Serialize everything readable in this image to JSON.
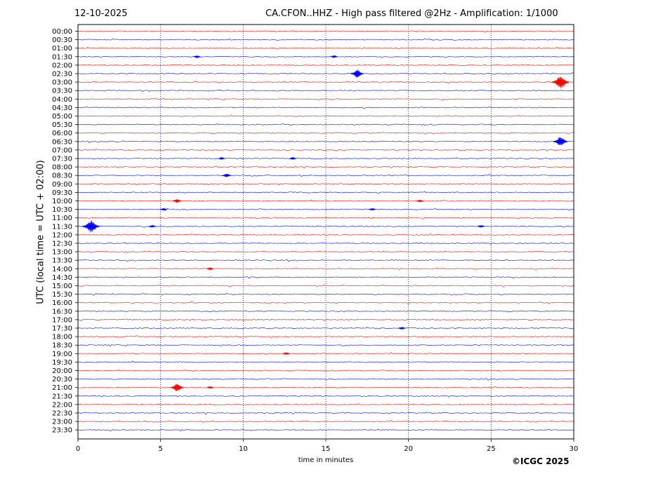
{
  "header": {
    "date": "12-10-2025",
    "title": "CA.CFON..HHZ - High pass filtered @2Hz - Amplification: 1/1000"
  },
  "footer": {
    "copyright": "©ICGC 2025"
  },
  "colors": {
    "trace_red": "#ff0000",
    "trace_blue": "#0000ff",
    "grid": "#000080",
    "frame": "#000000"
  },
  "chart_data": {
    "type": "line",
    "subtype": "helicorder",
    "title": "CA.CFON..HHZ - High pass filtered @2Hz - Amplification: 1/1000",
    "xlabel": "time in minutes",
    "ylabel": "UTC (local time = UTC + 02:00)",
    "xlim": [
      0,
      30
    ],
    "xticks": [
      0,
      5,
      10,
      15,
      20,
      25,
      30
    ],
    "grid": "vertical dotted lines at 5-minute ticks",
    "trace_colors": "alternating red and blue per row, starting with red at 00:00",
    "rows": [
      "00:00",
      "00:30",
      "01:00",
      "01:30",
      "02:00",
      "02:30",
      "03:00",
      "03:30",
      "04:00",
      "04:30",
      "05:00",
      "05:30",
      "06:00",
      "06:30",
      "07:00",
      "07:30",
      "08:00",
      "08:30",
      "09:00",
      "09:30",
      "10:00",
      "10:30",
      "11:00",
      "11:30",
      "12:00",
      "12:30",
      "13:00",
      "13:30",
      "14:00",
      "14:30",
      "15:00",
      "15:30",
      "16:00",
      "16:30",
      "17:00",
      "17:30",
      "18:00",
      "18:30",
      "19:00",
      "19:30",
      "20:00",
      "20:30",
      "21:00",
      "21:30",
      "22:00",
      "22:30",
      "23:00",
      "23:30"
    ],
    "events": [
      {
        "row": "01:30",
        "minute": 7.2,
        "amplitude": 2
      },
      {
        "row": "01:30",
        "minute": 15.5,
        "amplitude": 2
      },
      {
        "row": "02:30",
        "minute": 16.9,
        "amplitude": 6
      },
      {
        "row": "03:00",
        "minute": 29.2,
        "amplitude": 9
      },
      {
        "row": "06:30",
        "minute": 29.2,
        "amplitude": 7
      },
      {
        "row": "07:30",
        "minute": 8.7,
        "amplitude": 2
      },
      {
        "row": "07:30",
        "minute": 13.0,
        "amplitude": 2
      },
      {
        "row": "08:30",
        "minute": 9.0,
        "amplitude": 3
      },
      {
        "row": "10:00",
        "minute": 6.0,
        "amplitude": 3
      },
      {
        "row": "10:00",
        "minute": 20.7,
        "amplitude": 2
      },
      {
        "row": "10:30",
        "minute": 5.2,
        "amplitude": 2
      },
      {
        "row": "10:30",
        "minute": 17.8,
        "amplitude": 2
      },
      {
        "row": "11:30",
        "minute": 0.8,
        "amplitude": 9
      },
      {
        "row": "11:30",
        "minute": 4.5,
        "amplitude": 2
      },
      {
        "row": "11:30",
        "minute": 24.4,
        "amplitude": 2
      },
      {
        "row": "14:00",
        "minute": 8.0,
        "amplitude": 2
      },
      {
        "row": "17:30",
        "minute": 19.6,
        "amplitude": 2
      },
      {
        "row": "19:00",
        "minute": 12.6,
        "amplitude": 2
      },
      {
        "row": "21:00",
        "minute": 6.0,
        "amplitude": 6
      },
      {
        "row": "21:00",
        "minute": 8.0,
        "amplitude": 2
      }
    ]
  }
}
